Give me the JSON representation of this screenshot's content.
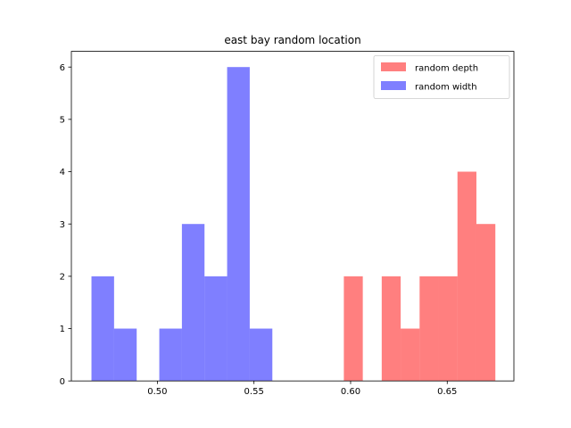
{
  "chart_data": {
    "type": "bar",
    "subtype": "histogram",
    "title": "east bay random location",
    "xlabel": "",
    "ylabel": "",
    "xlim": [
      0.4555,
      0.6845
    ],
    "ylim": [
      0,
      6.3
    ],
    "x_ticks": [
      {
        "value": 0.5,
        "label": "0.50"
      },
      {
        "value": 0.55,
        "label": "0.55"
      },
      {
        "value": 0.6,
        "label": "0.60"
      },
      {
        "value": 0.65,
        "label": "0.65"
      }
    ],
    "y_ticks": [
      {
        "value": 0,
        "label": "0"
      },
      {
        "value": 1,
        "label": "1"
      },
      {
        "value": 2,
        "label": "2"
      },
      {
        "value": 3,
        "label": "3"
      },
      {
        "value": 4,
        "label": "4"
      },
      {
        "value": 5,
        "label": "5"
      },
      {
        "value": 6,
        "label": "6"
      }
    ],
    "grid": false,
    "legend": {
      "position": "upper-right"
    },
    "series": [
      {
        "name": "random depth",
        "color": "#ff0000",
        "alpha": 0.5,
        "bin_edges": [
          0.5965,
          0.6063,
          0.6161,
          0.6259,
          0.6357,
          0.6455,
          0.6553,
          0.6651,
          0.6749
        ],
        "counts": [
          2,
          0,
          2,
          1,
          2,
          2,
          4,
          3
        ]
      },
      {
        "name": "random width",
        "color": "#0000ff",
        "alpha": 0.5,
        "bin_edges": [
          0.4659,
          0.4776,
          0.4893,
          0.501,
          0.5127,
          0.5244,
          0.5361,
          0.5478,
          0.5595
        ],
        "counts": [
          2,
          1,
          0,
          1,
          3,
          2,
          6,
          1
        ]
      }
    ]
  }
}
